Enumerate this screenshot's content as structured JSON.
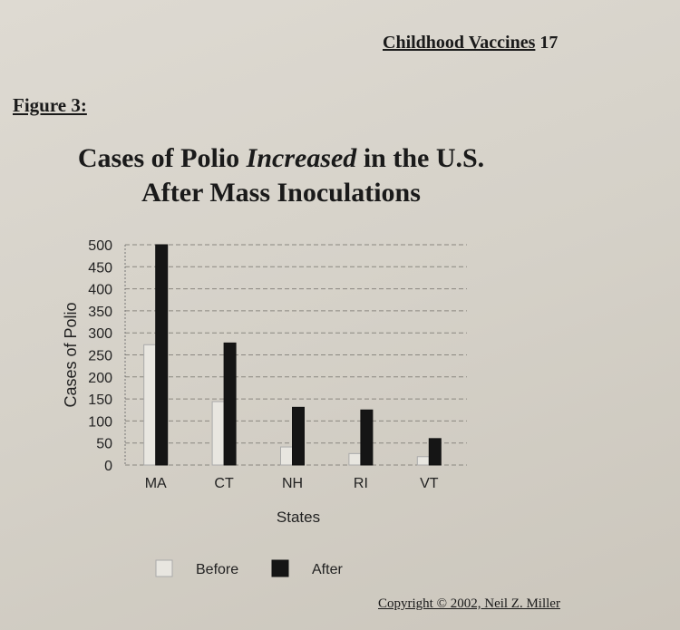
{
  "page": {
    "running_header": "Childhood Vaccines",
    "page_number": "17",
    "figure_label": "Figure 3:",
    "title_part1": "Cases of Polio ",
    "title_emphasis": "Increased",
    "title_part2": " in the U.S.",
    "title_line2": "After Mass Inoculations",
    "copyright": "Copyright © 2002, Neil Z. Miller"
  },
  "chart_data": {
    "type": "bar",
    "title": "Cases of Polio Increased in the U.S. After Mass Inoculations",
    "xlabel": "States",
    "ylabel": "Cases of Polio",
    "categories": [
      "MA",
      "CT",
      "NH",
      "RI",
      "VT"
    ],
    "series": [
      {
        "name": "Before",
        "color": "#e8e6e0",
        "values": [
          273,
          144,
          41,
          26,
          19
        ]
      },
      {
        "name": "After",
        "color": "#151515",
        "values": [
          500,
          277,
          131,
          125,
          60
        ]
      }
    ],
    "ylim": [
      0,
      500
    ],
    "yticks": [
      0,
      50,
      100,
      150,
      200,
      250,
      300,
      350,
      400,
      450,
      500
    ],
    "grid": true,
    "legend": "bottom"
  }
}
